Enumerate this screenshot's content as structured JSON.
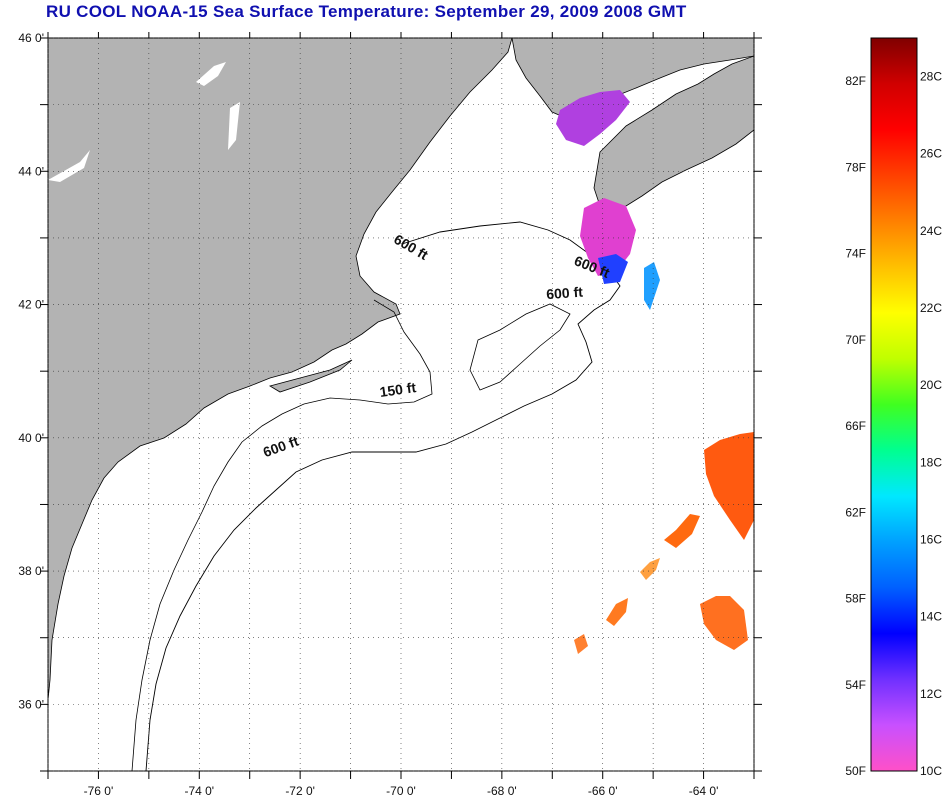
{
  "title": "RU COOL  NOAA-15  Sea Surface Temperature:  September 29, 2009 2008 GMT",
  "map": {
    "lon_range": [
      -77,
      -63
    ],
    "lat_range": [
      35,
      46
    ],
    "lon_ticks": [
      {
        "value": -76,
        "label": "-76 0'"
      },
      {
        "value": -74,
        "label": "-74 0'"
      },
      {
        "value": -72,
        "label": "-72 0'"
      },
      {
        "value": -70,
        "label": "-70 0'"
      },
      {
        "value": -68,
        "label": "-68 0'"
      },
      {
        "value": -66,
        "label": "-66 0'"
      },
      {
        "value": -64,
        "label": "-64 0'"
      }
    ],
    "lat_ticks": [
      {
        "value": 46,
        "label": "46 0'"
      },
      {
        "value": 44,
        "label": "44 0'"
      },
      {
        "value": 42,
        "label": "42 0'"
      },
      {
        "value": 40,
        "label": "40 0'"
      },
      {
        "value": 38,
        "label": "38 0'"
      },
      {
        "value": 36,
        "label": "36 0'"
      }
    ],
    "grid": "dotted",
    "land_color": "#b3b3b3",
    "water_color": "#ffffff",
    "contour_labels": [
      {
        "text": "600 ft",
        "lon": -69.85,
        "lat": 42.8,
        "angle": 30
      },
      {
        "text": "600 ft",
        "lon": -66.25,
        "lat": 42.5,
        "angle": 22
      },
      {
        "text": "600 ft",
        "lon": -66.75,
        "lat": 42.1,
        "angle": -4
      },
      {
        "text": "150 ft",
        "lon": -70.05,
        "lat": 40.65,
        "angle": -8
      },
      {
        "text": "600 ft",
        "lon": -72.35,
        "lat": 39.8,
        "angle": -20
      }
    ]
  },
  "colorbar": {
    "range_f": [
      50,
      84
    ],
    "range_c": [
      10,
      29
    ],
    "f_labels": [
      "82F",
      "78F",
      "74F",
      "70F",
      "66F",
      "62F",
      "58F",
      "54F",
      "50F"
    ],
    "c_labels": [
      "28C",
      "26C",
      "24C",
      "22C",
      "20C",
      "18C",
      "16C",
      "14C",
      "12C",
      "10C"
    ],
    "colors_bottom_to_top": [
      "#ff50c8",
      "#c850ff",
      "#7030ff",
      "#0000ff",
      "#0060ff",
      "#00a0ff",
      "#00e8ff",
      "#00ff90",
      "#40ff20",
      "#c0ff00",
      "#ffff00",
      "#ffc000",
      "#ff8000",
      "#ff4000",
      "#ff0000",
      "#d00000",
      "#800000"
    ]
  }
}
